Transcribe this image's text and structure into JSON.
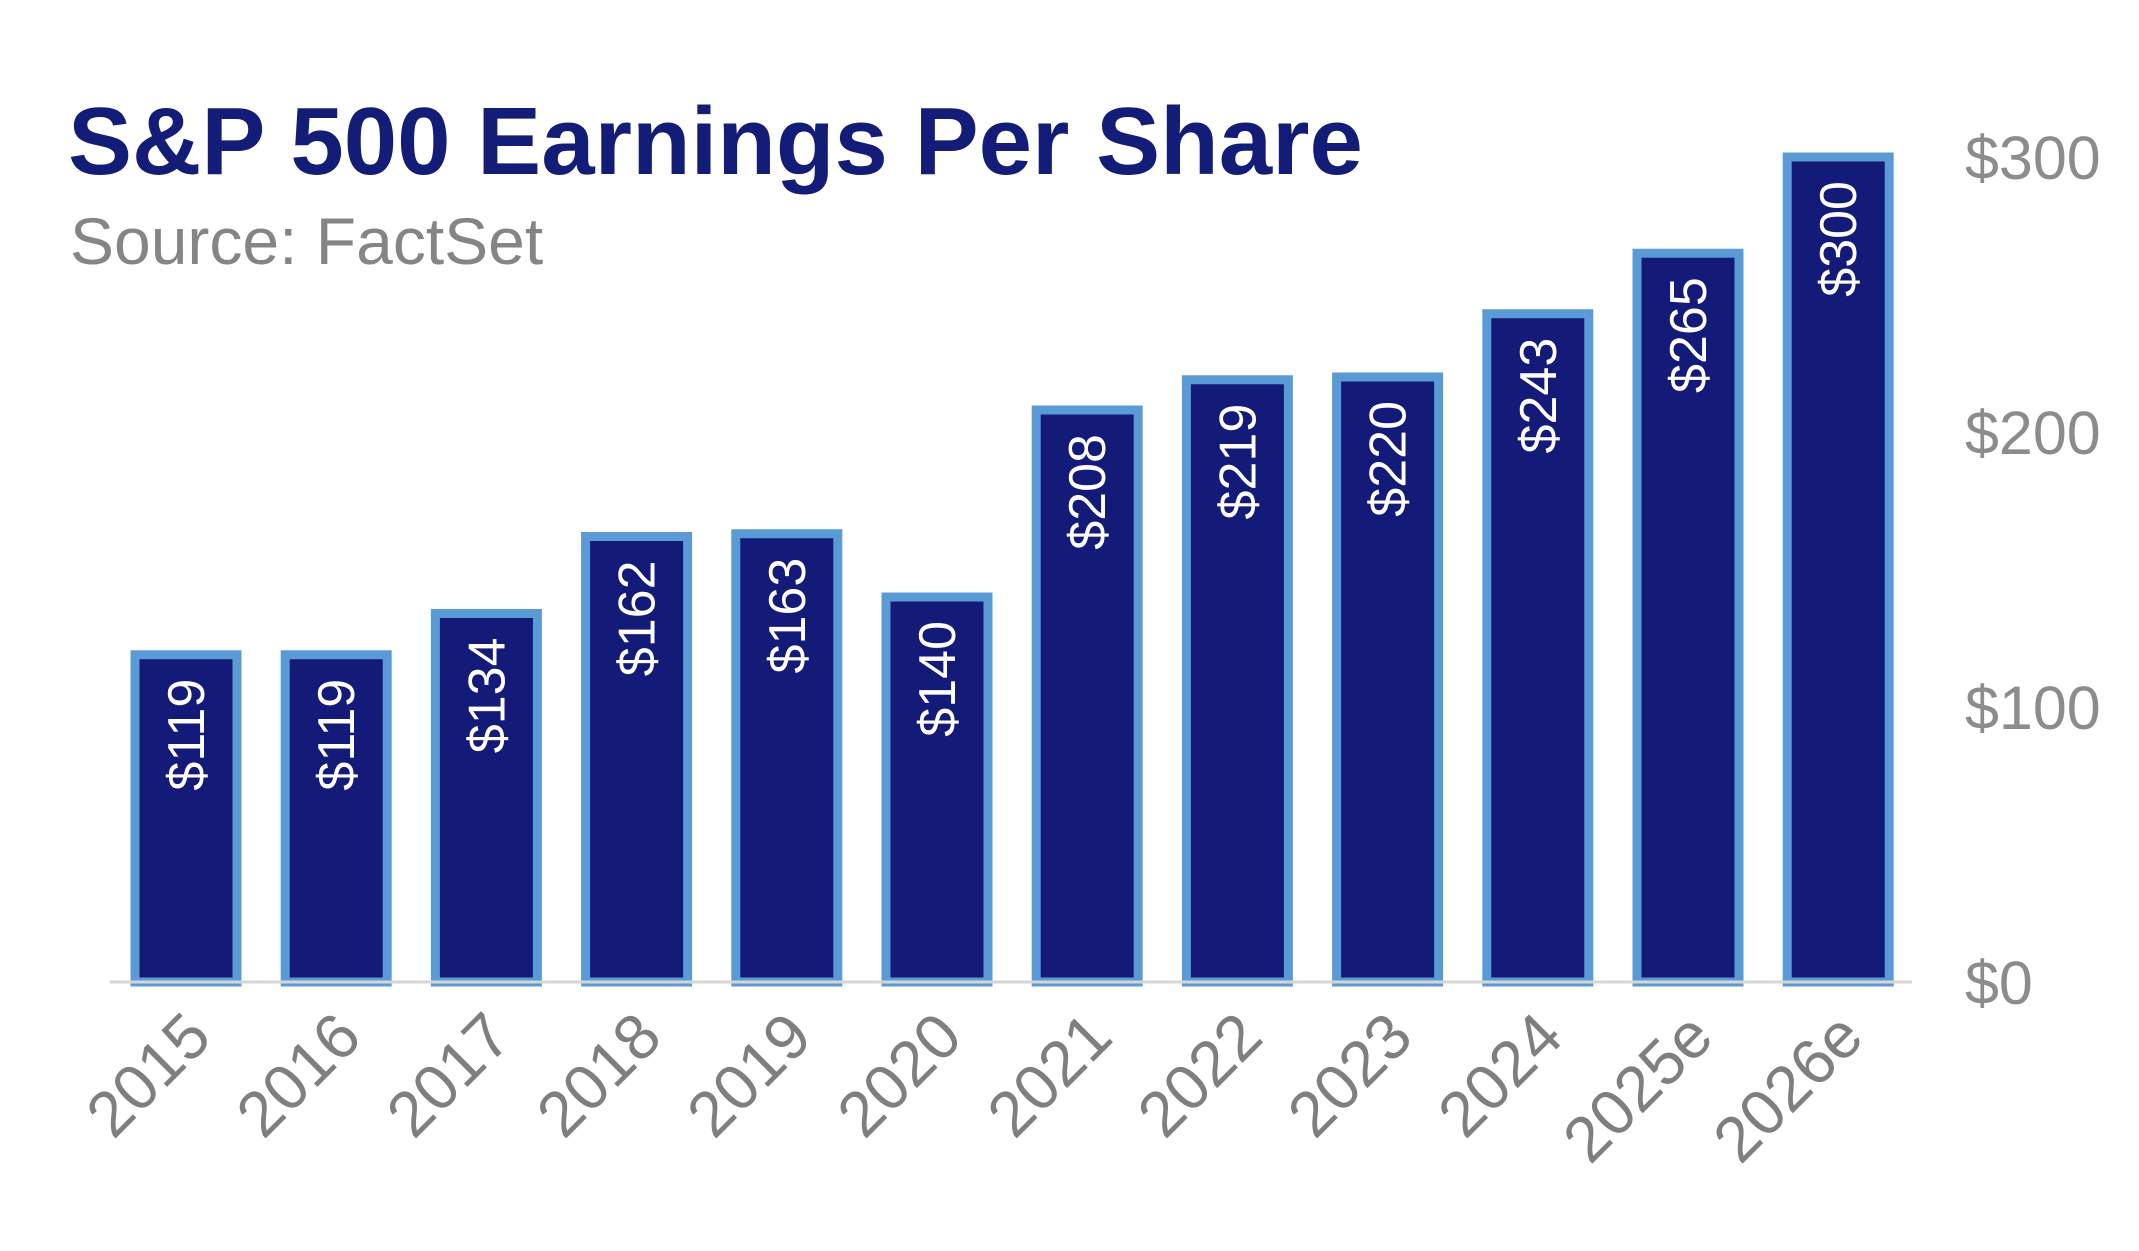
{
  "title": "S&P 500 Earnings Per Share",
  "subtitle": "Source: FactSet",
  "chart_data": {
    "type": "bar",
    "title": "S&P 500 Earnings Per Share",
    "subtitle": "Source: FactSet",
    "categories": [
      "2015",
      "2016",
      "2017",
      "2018",
      "2019",
      "2020",
      "2021",
      "2022",
      "2023",
      "2024",
      "2025e",
      "2026e"
    ],
    "values": [
      119,
      119,
      134,
      162,
      163,
      140,
      208,
      219,
      220,
      243,
      265,
      300
    ],
    "data_labels": [
      "$119",
      "$119",
      "$134",
      "$162",
      "$163",
      "$140",
      "$208",
      "$219",
      "$220",
      "$243",
      "$265",
      "$300"
    ],
    "y_axis_position": "right",
    "ylim": [
      0,
      300
    ],
    "yticks": [
      0,
      100,
      200,
      300
    ],
    "ytick_labels": [
      "$0",
      "$100",
      "$200",
      "$300"
    ],
    "grid": false,
    "legend": "none",
    "colors": {
      "bar_fill": "#131a78",
      "bar_border": "#5b9bd5",
      "title": "#131c77",
      "axis_text": "#8c8c8c"
    }
  }
}
